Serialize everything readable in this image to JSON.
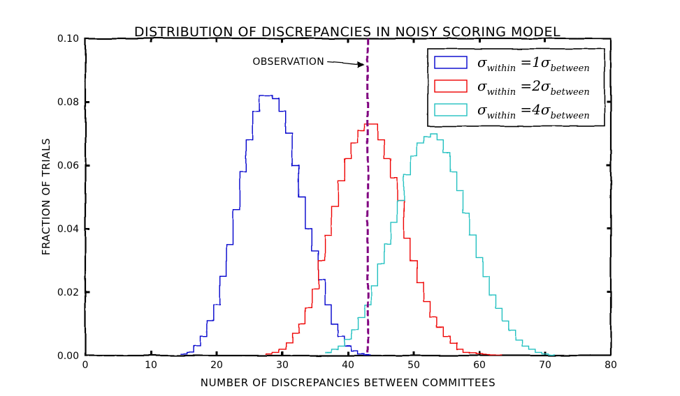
{
  "chart_data": {
    "type": "line",
    "title": "DISTRIBUTION OF DISCREPANCIES IN NOISY SCORING MODEL",
    "xlabel": "NUMBER OF DISCREPANCIES BETWEEN COMMITTEES",
    "ylabel": "FRACTION OF TRIALS",
    "xlim": [
      0,
      80
    ],
    "ylim": [
      0,
      0.1
    ],
    "xticks": [
      "0",
      "10",
      "20",
      "30",
      "40",
      "50",
      "60",
      "70",
      "80"
    ],
    "yticks": [
      "0.00",
      "0.02",
      "0.04",
      "0.06",
      "0.08",
      "0.10"
    ],
    "grid": false,
    "legend_position": "top-right",
    "annotation": {
      "text": "OBSERVATION",
      "x": 43
    },
    "vline": {
      "x": 43,
      "color": "#800080",
      "style": "dashed"
    },
    "series": [
      {
        "legend": {
          "lead": "σ",
          "sub1": "within",
          "mid": " =1σ",
          "sub2": "between"
        },
        "color": "#0000cc",
        "x": [
          15,
          16,
          17,
          18,
          19,
          20,
          21,
          22,
          23,
          24,
          25,
          26,
          27,
          28,
          29,
          30,
          31,
          32,
          33,
          34,
          35,
          36,
          37,
          38,
          39,
          40,
          41,
          42,
          43
        ],
        "y": [
          0.0005,
          0.001,
          0.003,
          0.006,
          0.011,
          0.016,
          0.025,
          0.035,
          0.046,
          0.058,
          0.068,
          0.077,
          0.082,
          0.082,
          0.081,
          0.077,
          0.07,
          0.06,
          0.05,
          0.04,
          0.033,
          0.024,
          0.016,
          0.01,
          0.006,
          0.003,
          0.0015,
          0.0005,
          0.0002
        ]
      },
      {
        "legend": {
          "lead": "σ",
          "sub1": "within",
          "mid": " =2σ",
          "sub2": "between"
        },
        "color": "#ee0000",
        "x": [
          28,
          29,
          30,
          31,
          32,
          33,
          34,
          35,
          36,
          37,
          38,
          39,
          40,
          41,
          42,
          43,
          44,
          45,
          46,
          47,
          48,
          49,
          50,
          51,
          52,
          53,
          54,
          55,
          56,
          57,
          58,
          59,
          60,
          61,
          62,
          63
        ],
        "y": [
          0.0005,
          0.001,
          0.002,
          0.004,
          0.007,
          0.01,
          0.015,
          0.021,
          0.03,
          0.038,
          0.047,
          0.055,
          0.062,
          0.067,
          0.071,
          0.073,
          0.073,
          0.068,
          0.062,
          0.056,
          0.049,
          0.037,
          0.03,
          0.023,
          0.017,
          0.012,
          0.009,
          0.006,
          0.004,
          0.002,
          0.001,
          0.0008,
          0.0005,
          0.0003,
          0.0002,
          0.0001
        ]
      },
      {
        "legend": {
          "lead": "σ",
          "sub1": "within",
          "mid": " =4σ",
          "sub2": "between"
        },
        "color": "#22c0c0",
        "x": [
          37,
          38,
          39,
          40,
          41,
          42,
          43,
          44,
          45,
          46,
          47,
          48,
          49,
          50,
          51,
          52,
          53,
          54,
          55,
          56,
          57,
          58,
          59,
          60,
          61,
          62,
          63,
          64,
          65,
          66,
          67,
          68,
          69,
          70,
          71
        ],
        "y": [
          0.001,
          0.002,
          0.003,
          0.005,
          0.008,
          0.012,
          0.016,
          0.022,
          0.029,
          0.035,
          0.042,
          0.049,
          0.057,
          0.063,
          0.067,
          0.069,
          0.07,
          0.068,
          0.064,
          0.058,
          0.052,
          0.045,
          0.038,
          0.031,
          0.025,
          0.019,
          0.015,
          0.011,
          0.008,
          0.005,
          0.003,
          0.002,
          0.001,
          0.0005,
          0.0002
        ]
      }
    ]
  }
}
